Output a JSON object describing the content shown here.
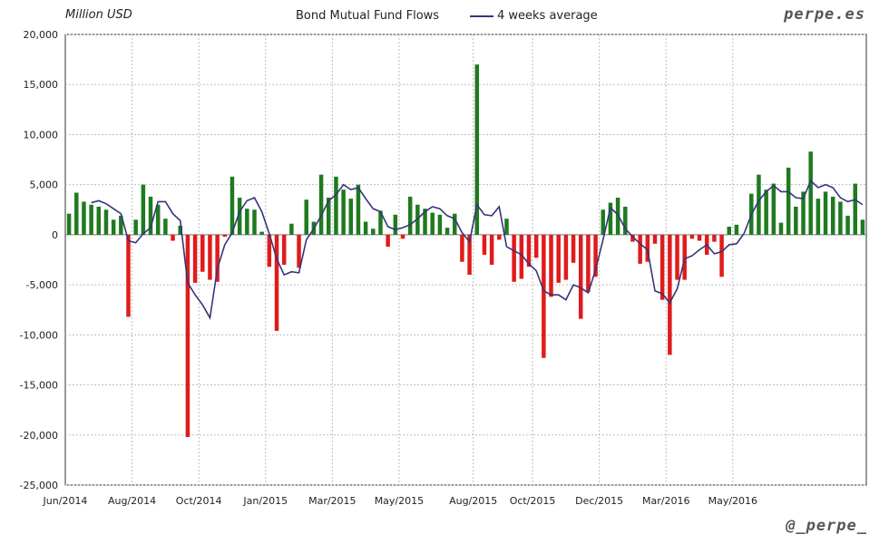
{
  "header": {
    "unit_label": "Million USD",
    "title": "Bond Mutual Fund Flows",
    "legend_label": "4 weeks average",
    "brand": "perpe.es",
    "handle": "@_perpe_"
  },
  "colors": {
    "positive": "#1f7a1f",
    "negative": "#e01b1b",
    "average_line": "#35347a",
    "grid": "#bdbdbd"
  },
  "chart_data": {
    "type": "bar",
    "title": "Bond Mutual Fund Flows",
    "ylabel": "Million USD",
    "ylim": [
      -25000,
      20000
    ],
    "y_ticks": [
      20000,
      15000,
      10000,
      5000,
      0,
      -5000,
      -10000,
      -15000,
      -20000,
      -25000
    ],
    "y_tick_labels": [
      "20,000",
      "15,000",
      "10,000",
      "5,000",
      "0",
      "-5,000",
      "-10,000",
      "-15,000",
      "-20,000",
      "-25,000"
    ],
    "x_tick_labels": [
      "Jun/2014",
      "Aug/2014",
      "Oct/2014",
      "Jan/2015",
      "Mar/2015",
      "May/2015",
      "Aug/2015",
      "Oct/2015",
      "Dec/2015",
      "Mar/2016",
      "May/2016"
    ],
    "x_tick_week_index": [
      0,
      9,
      18,
      27,
      36,
      45,
      55,
      63,
      72,
      81,
      90
    ],
    "grid": true,
    "legend_position": "top-center",
    "series": [
      {
        "name": "",
        "kind": "bar",
        "values": [
          2100,
          4200,
          3300,
          3000,
          2800,
          2500,
          1500,
          1900,
          -8200,
          1500,
          5000,
          3800,
          3000,
          1600,
          -600,
          900,
          -20200,
          -4800,
          -3700,
          -4500,
          -4700,
          -200,
          5800,
          3700,
          2600,
          2500,
          300,
          -3200,
          -9600,
          -3000,
          1100,
          -3300,
          3500,
          1300,
          6000,
          3700,
          5800,
          4500,
          3600,
          5000,
          1300,
          600,
          2400,
          -1200,
          2000,
          -400,
          3800,
          3000,
          2600,
          2200,
          2000,
          700,
          2100,
          -2700,
          -4000,
          17000,
          -2000,
          -3000,
          -500,
          1600,
          -4700,
          -4400,
          -3200,
          -2300,
          -12300,
          -6200,
          -4800,
          -4500,
          -2800,
          -8400,
          -5700,
          -4200,
          2500,
          3200,
          3700,
          2800,
          -700,
          -2900,
          -2700,
          -900,
          -6500,
          -12000,
          -4500,
          -4500,
          -400,
          -600,
          -2000,
          -700,
          -4200,
          800,
          1000,
          0,
          4100,
          6000,
          4500,
          5100,
          1200,
          6700,
          2800,
          4300,
          8300,
          3600,
          4300,
          3800,
          3300,
          1900,
          5100,
          1500
        ]
      },
      {
        "name": "4 weeks average",
        "kind": "line",
        "values": [
          null,
          null,
          null,
          3200,
          3400,
          3100,
          2600,
          2100,
          -600,
          -800,
          100,
          700,
          3300,
          3300,
          2100,
          1400,
          -4800,
          -6000,
          -7000,
          -8300,
          -3400,
          -1000,
          200,
          2300,
          3400,
          3700,
          2300,
          100,
          -2400,
          -4000,
          -3700,
          -3800,
          -500,
          600,
          1900,
          3400,
          4000,
          5000,
          4500,
          4700,
          3600,
          2600,
          2300,
          800,
          500,
          700,
          1000,
          1600,
          2300,
          2800,
          2600,
          1900,
          1600,
          200,
          -700,
          3000,
          2000,
          1900,
          2800,
          -1200,
          -1600,
          -2000,
          -2900,
          -3600,
          -5600,
          -6000,
          -6000,
          -6500,
          -5000,
          -5300,
          -5800,
          -3500,
          -500,
          2700,
          2000,
          600,
          -200,
          -900,
          -1500,
          -5600,
          -5900,
          -6800,
          -5400,
          -2400,
          -2100,
          -1500,
          -1000,
          -1900,
          -1700,
          -1000,
          -900,
          100,
          2000,
          3400,
          4300,
          4900,
          4300,
          4300,
          3700,
          3600,
          5400,
          4700,
          5000,
          4700,
          3700,
          3300,
          3500,
          3000
        ]
      }
    ]
  }
}
